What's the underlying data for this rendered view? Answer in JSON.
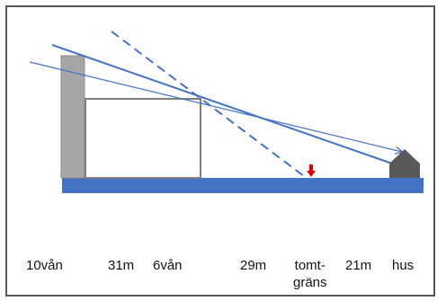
{
  "labels": {
    "floors_10": "10vån",
    "dist_31": "31m",
    "floors_6": "6vån",
    "dist_29": "29m",
    "plot_line_1": "tomt-",
    "plot_line_2": "gräns",
    "dist_21": "21m",
    "house": "hus"
  },
  "colors": {
    "ground": "#4472c4",
    "ray": "#4472c4",
    "tall_building": "#a6a6a6",
    "building_outline": "#7f7f7f",
    "house": "#595959",
    "marker": "#e00000"
  },
  "icons": {
    "boundary_marker": "down-arrow-icon",
    "house_shape": "house-icon"
  }
}
